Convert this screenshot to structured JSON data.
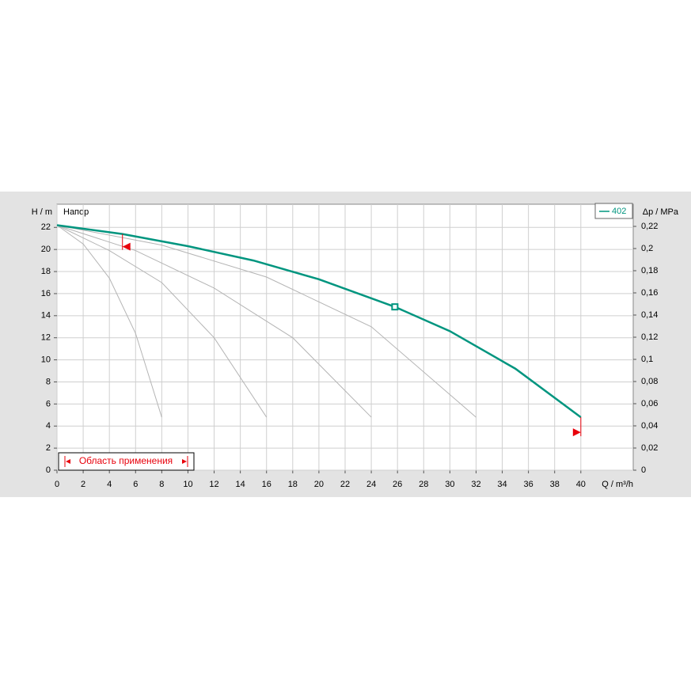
{
  "chart_data": {
    "type": "line",
    "y_label": "H / m",
    "y2_label": "Δp / MPa",
    "x_label": "Q / m³/h",
    "annotation": "Напор",
    "xlim": [
      0,
      44
    ],
    "ylim": [
      0,
      24.1
    ],
    "y2lim": [
      0,
      0.24
    ],
    "xticks": [
      0,
      2,
      4,
      6,
      8,
      10,
      12,
      14,
      16,
      18,
      20,
      22,
      24,
      26,
      28,
      30,
      32,
      34,
      36,
      38,
      40
    ],
    "yticks": [
      0,
      2,
      4,
      6,
      8,
      10,
      12,
      14,
      16,
      18,
      20,
      22
    ],
    "y2ticks": [
      0,
      {
        "value": 0.02,
        "label": "0,02"
      },
      {
        "value": 0.04,
        "label": "0,04"
      },
      {
        "value": 0.06,
        "label": "0,06"
      },
      {
        "value": 0.08,
        "label": "0,08"
      },
      {
        "value": 0.1,
        "label": "0,1"
      },
      {
        "value": 0.12,
        "label": "0,12"
      },
      {
        "value": 0.14,
        "label": "0,14"
      },
      {
        "value": 0.16,
        "label": "0,16"
      },
      {
        "value": 0.18,
        "label": "0,18"
      },
      {
        "value": 0.2,
        "label": "0,2"
      },
      {
        "value": 0.22,
        "label": "0,22"
      }
    ],
    "grid": true,
    "legend": "top-right",
    "series": [
      {
        "name": "402",
        "color": "#00957f",
        "x": [
          0,
          5,
          10,
          15,
          20,
          25.8,
          30,
          35,
          40
        ],
        "values": [
          22.2,
          21.4,
          20.3,
          19.0,
          17.3,
          14.8,
          12.6,
          9.2,
          4.8
        ]
      }
    ],
    "reference_curves": {
      "color": "#b4b4b4",
      "curves": [
        {
          "x": [
            0,
            2,
            4,
            6,
            8
          ],
          "values": [
            22.2,
            20.5,
            17.4,
            12.4,
            4.8
          ]
        },
        {
          "x": [
            0,
            4,
            8,
            12,
            16
          ],
          "values": [
            22.2,
            19.9,
            17.0,
            12.0,
            4.8
          ]
        },
        {
          "x": [
            0,
            6,
            12,
            18,
            24
          ],
          "values": [
            22.2,
            19.9,
            16.5,
            12.0,
            4.8
          ]
        },
        {
          "x": [
            0,
            8,
            16,
            24,
            32
          ],
          "values": [
            22.2,
            20.4,
            17.5,
            13.0,
            4.8
          ]
        }
      ]
    },
    "operating_point": {
      "x": 25.8,
      "y": 14.8
    },
    "application_range": {
      "label": "Область применения",
      "min": 5,
      "max": 40,
      "color": "#e8000b"
    }
  }
}
